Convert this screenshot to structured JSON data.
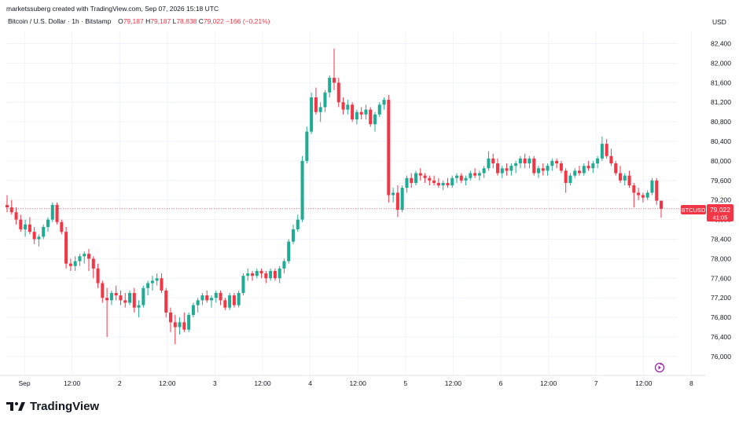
{
  "header": {
    "created_by": "marketssuberg created with TradingView.com, Sep 07, 2026 15:18 UTC",
    "symbol": "Bitcoin / U.S. Dollar · 1h · Bitstamp",
    "o_label": "O",
    "o_value": "79,187",
    "h_label": "H",
    "h_value": "79,187",
    "l_label": "L",
    "l_value": "78,838",
    "c_label": "C",
    "c_value": "79,022",
    "change": "−166 (−0.21%)"
  },
  "currency": "USD",
  "price_tag": {
    "ticker": "BTCUSD",
    "price": "79,022",
    "countdown": "41:05"
  },
  "footer": {
    "brand": "TradingView"
  },
  "icons": {
    "logo": "tradingview-logo-icon",
    "replay": "replay-icon"
  },
  "colors": {
    "up": "#22ab94",
    "down": "#f23645",
    "grid": "#f0f3fa",
    "text": "#131722"
  },
  "chart_data": {
    "type": "candlestick",
    "interval": "1h",
    "y_ticks": [
      82400,
      82000,
      81600,
      81200,
      80800,
      80400,
      80000,
      79600,
      79200,
      78800,
      78400,
      78000,
      77600,
      77200,
      76800,
      76400,
      76000
    ],
    "y_tick_labels": [
      "82,400",
      "82,000",
      "81,600",
      "81,200",
      "80,800",
      "80,400",
      "80,000",
      "79,600",
      "79,200",
      "78,800",
      "78,400",
      "78,000",
      "77,600",
      "77,200",
      "76,800",
      "76,400",
      "76,000"
    ],
    "x_tick_labels": [
      "Sep",
      "12:00",
      "2",
      "12:00",
      "3",
      "12:00",
      "4",
      "12:00",
      "5",
      "12:00",
      "6",
      "12:00",
      "7",
      "12:00",
      "8"
    ],
    "x_tick_hours": [
      0,
      12,
      24,
      36,
      48,
      60,
      72,
      84,
      96,
      108,
      120,
      132,
      144,
      156,
      168
    ],
    "last_price": 79022,
    "grid": true,
    "candles": [
      [
        79100,
        79300,
        78950,
        79050
      ],
      [
        79050,
        79200,
        78900,
        78950
      ],
      [
        78950,
        79050,
        78700,
        78800
      ],
      [
        78800,
        78900,
        78550,
        78600
      ],
      [
        78600,
        78800,
        78450,
        78700
      ],
      [
        78700,
        78850,
        78500,
        78550
      ],
      [
        78550,
        78650,
        78300,
        78400
      ],
      [
        78400,
        78500,
        78250,
        78450
      ],
      [
        78450,
        78700,
        78400,
        78650
      ],
      [
        78650,
        78850,
        78550,
        78800
      ],
      [
        78800,
        79150,
        78750,
        79100
      ],
      [
        79100,
        79150,
        78700,
        78750
      ],
      [
        78750,
        78800,
        78500,
        78550
      ],
      [
        78550,
        78650,
        77800,
        77900
      ],
      [
        77900,
        78000,
        77750,
        77850
      ],
      [
        77850,
        78050,
        77750,
        77950
      ],
      [
        77950,
        78100,
        77850,
        78050
      ],
      [
        78050,
        78150,
        77900,
        78100
      ],
      [
        78100,
        78200,
        77750,
        78000
      ],
      [
        78000,
        78050,
        77600,
        77800
      ],
      [
        77800,
        77900,
        77400,
        77500
      ],
      [
        77500,
        77550,
        77100,
        77200
      ],
      [
        77200,
        77400,
        76400,
        77150
      ],
      [
        77150,
        77350,
        77050,
        77300
      ],
      [
        77300,
        77450,
        77150,
        77250
      ],
      [
        77250,
        77350,
        77050,
        77150
      ],
      [
        77150,
        77300,
        77000,
        77100
      ],
      [
        77100,
        77350,
        77050,
        77300
      ],
      [
        77300,
        77400,
        76900,
        77000
      ],
      [
        77000,
        77150,
        76800,
        77050
      ],
      [
        77050,
        77450,
        77000,
        77400
      ],
      [
        77400,
        77550,
        77250,
        77500
      ],
      [
        77500,
        77650,
        77350,
        77550
      ],
      [
        77550,
        77700,
        77450,
        77600
      ],
      [
        77600,
        77700,
        77300,
        77350
      ],
      [
        77350,
        77400,
        76800,
        76900
      ],
      [
        76900,
        77000,
        76500,
        76700
      ],
      [
        76700,
        76850,
        76250,
        76600
      ],
      [
        76600,
        76800,
        76450,
        76700
      ],
      [
        76700,
        76900,
        76500,
        76550
      ],
      [
        76550,
        76900,
        76500,
        76850
      ],
      [
        76850,
        77100,
        76800,
        77050
      ],
      [
        77050,
        77200,
        76900,
        77150
      ],
      [
        77150,
        77300,
        77050,
        77250
      ],
      [
        77250,
        77350,
        77100,
        77150
      ],
      [
        77150,
        77250,
        77000,
        77200
      ],
      [
        77200,
        77350,
        77100,
        77300
      ],
      [
        77300,
        77350,
        77050,
        77150
      ],
      [
        77150,
        77200,
        76950,
        77000
      ],
      [
        77000,
        77300,
        76950,
        77250
      ],
      [
        77250,
        77300,
        77000,
        77050
      ],
      [
        77050,
        77350,
        77000,
        77300
      ],
      [
        77300,
        77700,
        77250,
        77650
      ],
      [
        77650,
        77800,
        77550,
        77700
      ],
      [
        77700,
        77750,
        77550,
        77650
      ],
      [
        77650,
        77800,
        77600,
        77750
      ],
      [
        77750,
        77800,
        77600,
        77700
      ],
      [
        77700,
        77750,
        77500,
        77600
      ],
      [
        77600,
        77800,
        77550,
        77750
      ],
      [
        77750,
        77800,
        77550,
        77600
      ],
      [
        77600,
        77850,
        77500,
        77800
      ],
      [
        77800,
        78000,
        77700,
        77950
      ],
      [
        77950,
        78400,
        77900,
        78350
      ],
      [
        78350,
        78700,
        78300,
        78600
      ],
      [
        78600,
        78900,
        78550,
        78800
      ],
      [
        78800,
        80100,
        78750,
        80000
      ],
      [
        80000,
        80700,
        79950,
        80600
      ],
      [
        80600,
        81400,
        80550,
        81300
      ],
      [
        81300,
        81500,
        80950,
        81000
      ],
      [
        81000,
        81200,
        80800,
        81100
      ],
      [
        81100,
        81450,
        81000,
        81400
      ],
      [
        81400,
        81750,
        81300,
        81700
      ],
      [
        81700,
        82300,
        81450,
        81600
      ],
      [
        81600,
        81700,
        81100,
        81200
      ],
      [
        81200,
        81300,
        80950,
        81050
      ],
      [
        81050,
        81250,
        80950,
        81150
      ],
      [
        81150,
        81200,
        80800,
        80850
      ],
      [
        80850,
        81050,
        80750,
        81000
      ],
      [
        81000,
        81100,
        80850,
        80950
      ],
      [
        80950,
        81150,
        80850,
        81050
      ],
      [
        81050,
        81100,
        80700,
        80750
      ],
      [
        80750,
        81000,
        80600,
        80950
      ],
      [
        80950,
        81200,
        80900,
        81150
      ],
      [
        81150,
        81300,
        81050,
        81250
      ],
      [
        81250,
        81350,
        79150,
        79300
      ],
      [
        79300,
        79450,
        79150,
        79350
      ],
      [
        79350,
        79500,
        78850,
        79000
      ],
      [
        79000,
        79500,
        78950,
        79450
      ],
      [
        79450,
        79700,
        79350,
        79650
      ],
      [
        79650,
        79750,
        79450,
        79550
      ],
      [
        79550,
        79800,
        79500,
        79750
      ],
      [
        79750,
        79850,
        79600,
        79700
      ],
      [
        79700,
        79750,
        79550,
        79650
      ],
      [
        79650,
        79700,
        79500,
        79600
      ],
      [
        79600,
        79700,
        79500,
        79550
      ],
      [
        79550,
        79650,
        79450,
        79500
      ],
      [
        79500,
        79600,
        79400,
        79550
      ],
      [
        79550,
        79650,
        79450,
        79500
      ],
      [
        79500,
        79700,
        79450,
        79650
      ],
      [
        79650,
        79750,
        79550,
        79700
      ],
      [
        79700,
        79750,
        79550,
        79600
      ],
      [
        79600,
        79700,
        79500,
        79650
      ],
      [
        79650,
        79800,
        79600,
        79750
      ],
      [
        79750,
        79850,
        79650,
        79700
      ],
      [
        79700,
        79800,
        79600,
        79750
      ],
      [
        79750,
        79900,
        79650,
        79850
      ],
      [
        79850,
        80200,
        79800,
        80050
      ],
      [
        80050,
        80150,
        79850,
        79950
      ],
      [
        79950,
        80050,
        79700,
        79750
      ],
      [
        79750,
        79900,
        79650,
        79850
      ],
      [
        79850,
        79950,
        79700,
        79800
      ],
      [
        79800,
        79950,
        79700,
        79900
      ],
      [
        79900,
        80000,
        79750,
        79950
      ],
      [
        79950,
        80100,
        79850,
        80050
      ],
      [
        80050,
        80150,
        79850,
        79950
      ],
      [
        79950,
        80100,
        79850,
        80050
      ],
      [
        80050,
        80100,
        79700,
        79750
      ],
      [
        79750,
        79900,
        79650,
        79850
      ],
      [
        79850,
        79950,
        79700,
        79800
      ],
      [
        79800,
        79950,
        79700,
        79900
      ],
      [
        79900,
        80050,
        79800,
        80000
      ],
      [
        80000,
        80050,
        79850,
        79950
      ],
      [
        79950,
        80000,
        79750,
        79800
      ],
      [
        79800,
        79850,
        79350,
        79550
      ],
      [
        79550,
        79750,
        79500,
        79700
      ],
      [
        79700,
        79850,
        79650,
        79800
      ],
      [
        79800,
        79900,
        79700,
        79750
      ],
      [
        79750,
        79950,
        79700,
        79900
      ],
      [
        79900,
        80000,
        79800,
        79850
      ],
      [
        79850,
        80000,
        79750,
        79950
      ],
      [
        79950,
        80100,
        79850,
        80050
      ],
      [
        80050,
        80500,
        80000,
        80350
      ],
      [
        80350,
        80450,
        80050,
        80100
      ],
      [
        80100,
        80250,
        79900,
        79950
      ],
      [
        79950,
        80000,
        79700,
        79750
      ],
      [
        79750,
        79900,
        79550,
        79600
      ],
      [
        79600,
        79750,
        79500,
        79700
      ],
      [
        79700,
        79800,
        79450,
        79500
      ],
      [
        79500,
        79550,
        79050,
        79350
      ],
      [
        79350,
        79450,
        79200,
        79300
      ],
      [
        79300,
        79350,
        79150,
        79250
      ],
      [
        79250,
        79400,
        79200,
        79350
      ],
      [
        79350,
        79650,
        79300,
        79600
      ],
      [
        79600,
        79650,
        79100,
        79187
      ],
      [
        79187,
        79187,
        78838,
        79022
      ]
    ]
  }
}
